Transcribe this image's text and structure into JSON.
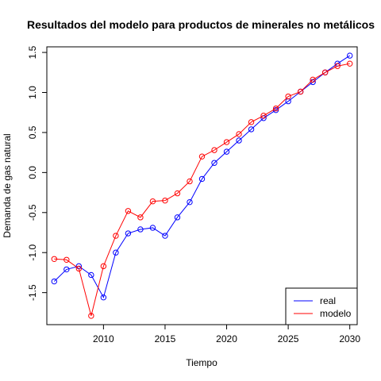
{
  "chart_data": {
    "type": "line",
    "title": "Resultados del modelo para productos de minerales no metálicos",
    "xlabel": "Tiempo",
    "ylabel": "Demanda de gas natural",
    "xlim": [
      2005.4,
      2030.6
    ],
    "ylim": [
      -1.9,
      1.57
    ],
    "xticks": [
      2010,
      2015,
      2020,
      2025,
      2030
    ],
    "yticks": [
      -1.5,
      -1.0,
      -0.5,
      0.0,
      0.5,
      1.0,
      1.5
    ],
    "xtick_labels": [
      "2010",
      "2015",
      "2020",
      "2025",
      "2030"
    ],
    "ytick_labels": [
      "-1.5",
      "-1.0",
      "-0.5",
      "0.0",
      "0.5",
      "1.0",
      "1.5"
    ],
    "x": [
      2006,
      2007,
      2008,
      2009,
      2010,
      2011,
      2012,
      2013,
      2014,
      2015,
      2016,
      2017,
      2018,
      2019,
      2020,
      2021,
      2022,
      2023,
      2024,
      2025,
      2026,
      2027,
      2028,
      2029,
      2030
    ],
    "series": [
      {
        "name": "real",
        "color": "#0000ff",
        "values": [
          -1.36,
          -1.21,
          -1.17,
          -1.28,
          -1.56,
          -1.0,
          -0.76,
          -0.71,
          -0.69,
          -0.79,
          -0.56,
          -0.37,
          -0.08,
          0.12,
          0.26,
          0.4,
          0.54,
          0.68,
          0.78,
          0.89,
          1.01,
          1.13,
          1.25,
          1.36,
          1.46
        ]
      },
      {
        "name": "modelo",
        "color": "#ff0000",
        "values": [
          -1.08,
          -1.09,
          -1.2,
          -1.79,
          -1.17,
          -0.79,
          -0.48,
          -0.56,
          -0.36,
          -0.35,
          -0.26,
          -0.11,
          0.2,
          0.28,
          0.38,
          0.48,
          0.63,
          0.71,
          0.8,
          0.95,
          1.01,
          1.16,
          1.25,
          1.33,
          1.36
        ]
      }
    ],
    "legend_position": "bottom-right"
  }
}
